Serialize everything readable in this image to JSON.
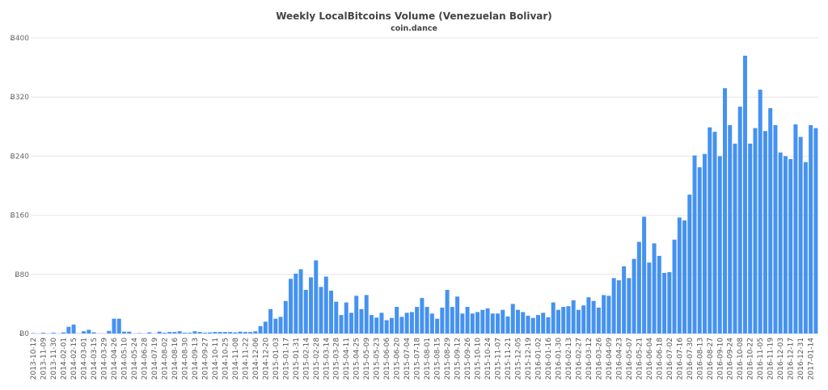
{
  "chart_data": {
    "type": "bar",
    "title": "Weekly LocalBitcoins Volume (Venezuelan Bolivar)",
    "subtitle": "coin.dance",
    "xlabel": "",
    "ylabel": "",
    "ylim": [
      0,
      400
    ],
    "yticks": [
      0,
      80,
      160,
      240,
      320,
      400
    ],
    "ytick_labels": [
      "Ƀ0",
      "Ƀ80",
      "Ƀ160",
      "Ƀ240",
      "Ƀ320",
      "Ƀ400"
    ],
    "grid": true,
    "bar_color": "#4592f0",
    "categories": [
      "2013-10-12",
      "",
      "2013-11-09",
      "",
      "2013-11-30",
      "",
      "2014-02-01",
      "",
      "2014-02-15",
      "",
      "2014-03-01",
      "",
      "2014-03-15",
      "",
      "2014-03-29",
      "",
      "2014-04-26",
      "",
      "2014-05-10",
      "",
      "2014-05-24",
      "",
      "2014-06-28",
      "",
      "2014-07-19",
      "",
      "2014-08-02",
      "",
      "2014-08-16",
      "",
      "2014-08-30",
      "",
      "2014-09-13",
      "",
      "2014-09-27",
      "",
      "2014-10-11",
      "",
      "2014-10-25",
      "",
      "2014-11-08",
      "",
      "2014-11-22",
      "",
      "2014-12-06",
      "",
      "2014-12-20",
      "",
      "2015-01-03",
      "",
      "2015-01-17",
      "",
      "2015-01-31",
      "",
      "2015-02-14",
      "",
      "2015-02-28",
      "",
      "2015-03-14",
      "",
      "2015-03-28",
      "",
      "2015-04-11",
      "",
      "2015-04-25",
      "",
      "2015-05-09",
      "",
      "2015-05-23",
      "",
      "2015-06-06",
      "",
      "2015-06-20",
      "",
      "2015-07-04",
      "",
      "2015-07-18",
      "",
      "2015-08-01",
      "",
      "2015-08-15",
      "",
      "2015-08-29",
      "",
      "2015-09-12",
      "",
      "2015-09-26",
      "",
      "2015-10-10",
      "",
      "2015-10-24",
      "",
      "2015-11-07",
      "",
      "2015-11-21",
      "",
      "2015-12-05",
      "",
      "2015-12-19",
      "",
      "2016-01-02",
      "",
      "2016-01-16",
      "",
      "2016-01-30",
      "",
      "2016-02-13",
      "",
      "2016-02-27",
      "",
      "2016-03-12",
      "",
      "2016-03-26",
      "",
      "2016-04-09",
      "",
      "2016-04-23",
      "",
      "2016-05-07",
      "",
      "2016-05-21",
      "",
      "2016-06-04",
      "",
      "2016-06-18",
      "",
      "2016-07-02",
      "",
      "2016-07-16",
      "",
      "2016-07-30",
      "",
      "2016-08-13",
      "",
      "2016-08-27",
      "",
      "2016-09-10",
      "",
      "2016-09-24",
      "",
      "2016-10-08",
      "",
      "2016-10-22",
      "",
      "2016-11-05",
      "",
      "2016-11-19",
      "",
      "2016-12-03",
      "",
      "2016-12-17",
      "",
      "2016-12-31",
      "",
      "2017-01-14",
      ""
    ],
    "values": [
      0.5,
      0,
      1,
      0,
      1,
      0,
      1.5,
      9,
      12,
      0,
      3,
      5,
      1.5,
      0,
      0,
      3.5,
      20,
      20,
      2.5,
      2.5,
      0,
      0.5,
      0,
      1.5,
      0,
      2.5,
      1,
      2,
      2,
      3,
      1,
      1,
      3,
      2,
      1,
      1.5,
      2,
      2,
      2,
      2,
      1.5,
      2.5,
      2,
      2,
      3,
      10,
      16,
      33,
      20,
      22.5,
      44,
      74,
      81,
      87,
      59,
      76,
      99,
      63,
      77,
      58,
      43,
      25,
      42,
      28,
      51,
      33,
      52,
      25,
      21.5,
      28,
      18,
      21,
      36,
      22.5,
      28,
      29,
      36,
      48,
      36,
      27,
      20,
      35,
      59,
      36,
      50,
      27,
      36,
      27,
      29,
      32,
      34,
      27,
      27,
      32,
      23,
      40,
      32,
      29,
      24,
      21,
      25,
      28,
      22,
      42,
      32,
      36,
      37,
      45,
      32,
      38,
      49,
      44,
      35,
      52,
      51,
      75,
      72,
      91,
      75,
      101,
      124,
      158,
      96,
      122,
      105,
      82,
      83,
      127,
      157,
      153,
      188,
      241,
      225,
      243,
      279,
      273,
      240,
      332,
      282,
      257,
      307,
      376,
      257,
      278,
      330,
      274,
      305,
      282,
      245,
      240,
      236,
      283,
      266,
      232,
      282,
      278
    ]
  }
}
